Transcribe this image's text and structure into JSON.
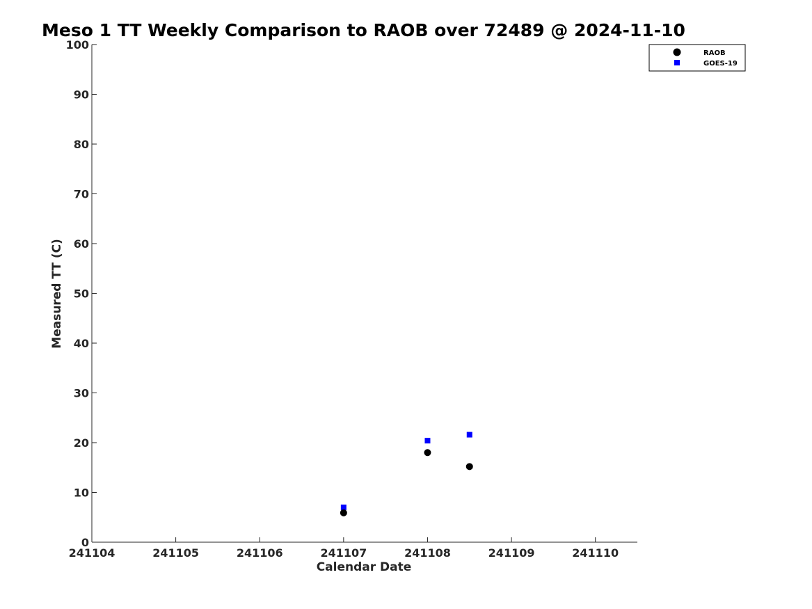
{
  "chart_data": {
    "type": "scatter",
    "title": "Meso 1 TT Weekly Comparison to RAOB over 72489 @ 2024-11-10",
    "xlabel": "Calendar Date",
    "ylabel": "Measured TT (C)",
    "xlim": [
      0,
      6.5
    ],
    "ylim": [
      0,
      100
    ],
    "xticks": [
      0,
      1,
      2,
      3,
      4,
      5,
      6
    ],
    "xtick_labels": [
      "241104",
      "241105",
      "241106",
      "241107",
      "241108",
      "241109",
      "241110"
    ],
    "yticks": [
      0,
      10,
      20,
      30,
      40,
      50,
      60,
      70,
      80,
      90,
      100
    ],
    "ytick_labels": [
      "0",
      "10",
      "20",
      "30",
      "40",
      "50",
      "60",
      "70",
      "80",
      "90",
      "100"
    ],
    "grid": false,
    "legend_position": "top-right",
    "series": [
      {
        "name": "RAOB",
        "marker": "circle",
        "color": "#000000",
        "x": [
          3,
          4,
          4.5
        ],
        "y": [
          5.9,
          18.0,
          15.2
        ]
      },
      {
        "name": "GOES-19",
        "marker": "square",
        "color": "#0000ff",
        "x": [
          3,
          4,
          4.5
        ],
        "y": [
          7.0,
          20.4,
          21.6
        ]
      }
    ]
  }
}
